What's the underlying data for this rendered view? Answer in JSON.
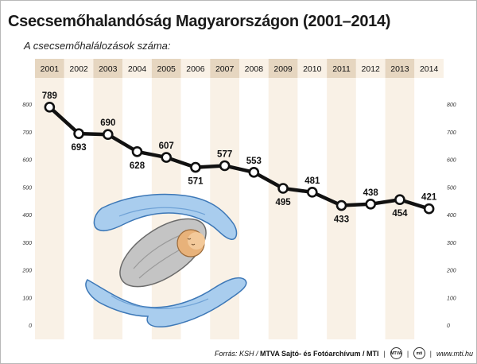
{
  "header": {
    "title": "Csecsemőhalandóság Magyarországon (2001–2014)",
    "subtitle": "A csecsemőhalálozások száma:"
  },
  "footer": {
    "source": "Forrás: KSH / ",
    "source_bold": "MTVA Sajtó- és Fotóarchívum / MTI",
    "logo_mtva": "MTVA",
    "logo_mti": "mti",
    "website": "www.mti.hu"
  },
  "colors": {
    "band_dark": "#e6d6c0",
    "band_light": "#f9f1e6",
    "line": "#111111",
    "marker_fill": "#ffffff",
    "hand_blue": "#9fc6ec",
    "baby": "#c9c9c9"
  },
  "icons": [
    "protecting-hands-illustration",
    "baby-icon"
  ],
  "chart_data": {
    "type": "line",
    "title": "Csecsemőhalandóság Magyarországon (2001–2014)",
    "subtitle": "A csecsemőhalálozások száma:",
    "xlabel": "",
    "ylabel": "",
    "categories": [
      "2001",
      "2002",
      "2003",
      "2004",
      "2005",
      "2006",
      "2007",
      "2008",
      "2009",
      "2010",
      "2011",
      "2012",
      "2013",
      "2014"
    ],
    "series": [
      {
        "values": [
          789,
          693,
          690,
          628,
          607,
          571,
          577,
          553,
          495,
          481,
          433,
          438,
          454,
          421
        ]
      }
    ],
    "label_positions": [
      "above",
      "below",
      "above",
      "below",
      "above",
      "below",
      "above",
      "above",
      "below",
      "above",
      "below",
      "above",
      "below",
      "above"
    ],
    "y_ticks": [
      0,
      100,
      200,
      300,
      400,
      500,
      600,
      700,
      800
    ],
    "ylim": [
      0,
      800
    ],
    "grid": true,
    "legend": "none"
  }
}
